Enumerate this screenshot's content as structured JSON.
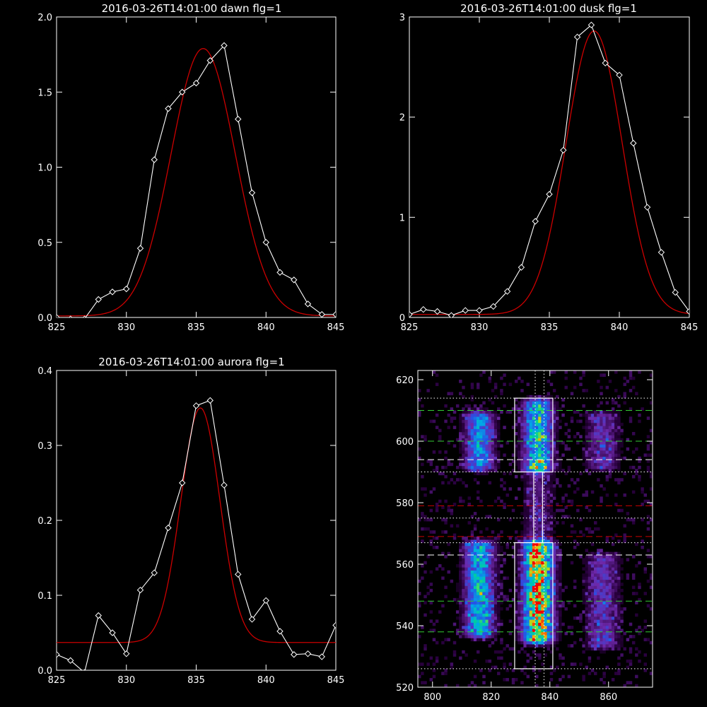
{
  "colors": {
    "background": "#000000",
    "axis": "#ffffff",
    "data": "#ffffff",
    "fit": "#cc0000",
    "green_line": "#33cc33",
    "red_line": "#cc0000",
    "white_line": "#ffffff"
  },
  "chart_data": [
    {
      "type": "line",
      "title": "2016-03-26T14:01:00 dawn flg=1",
      "xlim": [
        825,
        845
      ],
      "ylim": [
        0,
        2.0
      ],
      "xticks": [
        825,
        830,
        835,
        840,
        845
      ],
      "xtick_labels": [
        "825",
        "830",
        "835",
        "840",
        "845"
      ],
      "yticks": [
        0,
        0.5,
        1.0,
        1.5,
        2.0
      ],
      "ytick_labels": [
        "0.0",
        "0.5",
        "1.0",
        "1.5",
        "2.0"
      ],
      "series": [
        {
          "kind": "data",
          "marker": "diamond",
          "x": [
            825,
            826,
            827,
            828,
            829,
            830,
            831,
            832,
            833,
            834,
            835,
            836,
            837,
            838,
            839,
            840,
            841,
            842,
            843,
            844,
            845
          ],
          "y": [
            0.0,
            -0.01,
            -0.01,
            0.12,
            0.17,
            0.19,
            0.46,
            1.05,
            1.39,
            1.5,
            1.56,
            1.71,
            1.81,
            1.32,
            0.83,
            0.5,
            0.3,
            0.25,
            0.09,
            0.02,
            0.02
          ]
        },
        {
          "kind": "fit",
          "gaussian": {
            "amplitude": 1.78,
            "center": 835.5,
            "sigma": 2.3,
            "offset": 0.01
          }
        }
      ]
    },
    {
      "type": "line",
      "title": "2016-03-26T14:01:00 dusk flg=1",
      "xlim": [
        825,
        845
      ],
      "ylim": [
        0,
        3
      ],
      "xticks": [
        825,
        830,
        835,
        840,
        845
      ],
      "xtick_labels": [
        "825",
        "830",
        "835",
        "840",
        "845"
      ],
      "yticks": [
        0,
        1,
        2,
        3
      ],
      "ytick_labels": [
        "0",
        "1",
        "2",
        "3"
      ],
      "series": [
        {
          "kind": "data",
          "marker": "diamond",
          "x": [
            825,
            826,
            827,
            828,
            829,
            830,
            831,
            832,
            833,
            834,
            835,
            836,
            837,
            838,
            839,
            840,
            841,
            842,
            843,
            844,
            845
          ],
          "y": [
            0.03,
            0.08,
            0.06,
            0.02,
            0.07,
            0.07,
            0.11,
            0.26,
            0.5,
            0.96,
            1.23,
            1.67,
            2.8,
            2.92,
            2.54,
            2.42,
            1.74,
            1.1,
            0.65,
            0.25,
            0.06
          ]
        },
        {
          "kind": "fit",
          "gaussian": {
            "amplitude": 2.83,
            "center": 838.2,
            "sigma": 2.0,
            "offset": 0.03
          }
        }
      ]
    },
    {
      "type": "line",
      "title": "2016-03-26T14:01:00 aurora flg=1",
      "xlim": [
        825,
        845
      ],
      "ylim": [
        0,
        0.4
      ],
      "xticks": [
        825,
        830,
        835,
        840,
        845
      ],
      "xtick_labels": [
        "825",
        "830",
        "835",
        "840",
        "845"
      ],
      "yticks": [
        0,
        0.1,
        0.2,
        0.3,
        0.4
      ],
      "ytick_labels": [
        "0.0",
        "0.1",
        "0.2",
        "0.3",
        "0.4"
      ],
      "series": [
        {
          "kind": "data",
          "marker": "diamond",
          "x": [
            825,
            826,
            827,
            828,
            829,
            830,
            831,
            832,
            833,
            834,
            835,
            836,
            837,
            838,
            839,
            840,
            841,
            842,
            843,
            844,
            845
          ],
          "y": [
            0.021,
            0.013,
            -0.003,
            0.073,
            0.05,
            0.022,
            0.107,
            0.13,
            0.19,
            0.25,
            0.353,
            0.36,
            0.247,
            0.128,
            0.068,
            0.093,
            0.052,
            0.021,
            0.022,
            0.018,
            0.06
          ]
        },
        {
          "kind": "fit",
          "gaussian": {
            "amplitude": 0.313,
            "center": 835.3,
            "sigma": 1.4,
            "offset": 0.037
          }
        }
      ]
    },
    {
      "type": "heatmap",
      "title": "",
      "xlim": [
        795,
        875
      ],
      "ylim": [
        520,
        623
      ],
      "xticks": [
        800,
        820,
        840,
        860
      ],
      "xtick_labels": [
        "800",
        "820",
        "840",
        "860"
      ],
      "yticks": [
        520,
        540,
        560,
        580,
        600,
        620
      ],
      "ytick_labels": [
        "520",
        "540",
        "560",
        "580",
        "600",
        "620"
      ],
      "bands": [
        {
          "x_center": 816,
          "x_width": 3.5,
          "segments": [
            {
              "y0": 592,
              "y1": 608,
              "peak": 0.55
            },
            {
              "y0": 538,
              "y1": 566,
              "peak": 0.65
            }
          ]
        },
        {
          "x_center": 836,
          "x_width": 3.5,
          "segments": [
            {
              "y0": 592,
              "y1": 612,
              "peak": 0.7
            },
            {
              "y0": 569,
              "y1": 590,
              "peak": 0.25
            },
            {
              "y0": 536,
              "y1": 566,
              "peak": 1.0
            }
          ]
        },
        {
          "x_center": 858,
          "x_width": 4,
          "segments": [
            {
              "y0": 592,
              "y1": 608,
              "peak": 0.3
            },
            {
              "y0": 534,
              "y1": 562,
              "peak": 0.32
            }
          ]
        }
      ],
      "boxes": [
        {
          "x": [
            828,
            841
          ],
          "y": [
            590,
            614
          ]
        },
        {
          "x": [
            828,
            841
          ],
          "y": [
            526,
            567
          ]
        }
      ],
      "connector": {
        "x": [
          834.5,
          837.5
        ],
        "y": [
          567,
          590
        ]
      },
      "vlines": [
        {
          "x": 835,
          "style": "dotted",
          "color": "white"
        },
        {
          "x": 838,
          "style": "dotted",
          "color": "white"
        }
      ],
      "hlines": [
        {
          "y": 614,
          "style": "dotted",
          "color": "white"
        },
        {
          "y": 610,
          "style": "dashed",
          "color": "green"
        },
        {
          "y": 600,
          "style": "dashed",
          "color": "green"
        },
        {
          "y": 594,
          "style": "dashed",
          "color": "white"
        },
        {
          "y": 590,
          "style": "dotted",
          "color": "white"
        },
        {
          "y": 579,
          "style": "dashed",
          "color": "red"
        },
        {
          "y": 575,
          "style": "dotted",
          "color": "white"
        },
        {
          "y": 569,
          "style": "dashed",
          "color": "red"
        },
        {
          "y": 567,
          "style": "dotted",
          "color": "white"
        },
        {
          "y": 563,
          "style": "dashed",
          "color": "white"
        },
        {
          "y": 548,
          "style": "dashed",
          "color": "green"
        },
        {
          "y": 538,
          "style": "dashed",
          "color": "green"
        },
        {
          "y": 526,
          "style": "dotted",
          "color": "white"
        }
      ]
    }
  ]
}
